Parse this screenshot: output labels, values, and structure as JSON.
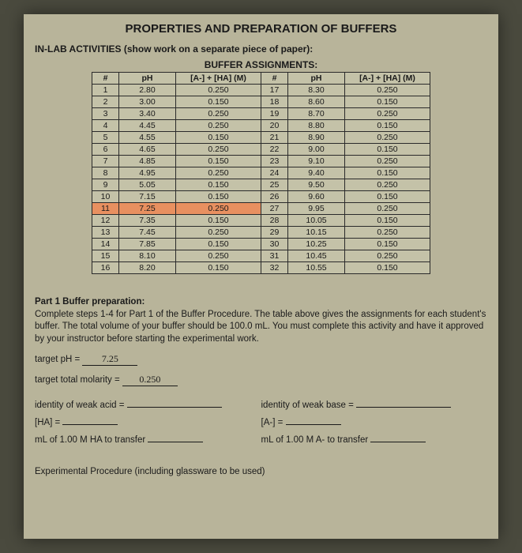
{
  "title": "PROPERTIES AND PREPARATION OF BUFFERS",
  "subhead": "IN-LAB ACTIVITIES (show work on a separate piece of paper):",
  "table_title": "BUFFER ASSIGNMENTS:",
  "headers": {
    "num": "#",
    "ph": "pH",
    "conc": "[A-] + [HA] (M)"
  },
  "highlight_row": 11,
  "left_rows": [
    {
      "n": 1,
      "ph": "2.80",
      "m": "0.250"
    },
    {
      "n": 2,
      "ph": "3.00",
      "m": "0.150"
    },
    {
      "n": 3,
      "ph": "3.40",
      "m": "0.250"
    },
    {
      "n": 4,
      "ph": "4.45",
      "m": "0.250"
    },
    {
      "n": 5,
      "ph": "4.55",
      "m": "0.150"
    },
    {
      "n": 6,
      "ph": "4.65",
      "m": "0.250"
    },
    {
      "n": 7,
      "ph": "4.85",
      "m": "0.150"
    },
    {
      "n": 8,
      "ph": "4.95",
      "m": "0.250"
    },
    {
      "n": 9,
      "ph": "5.05",
      "m": "0.150"
    },
    {
      "n": 10,
      "ph": "7.15",
      "m": "0.150"
    },
    {
      "n": 11,
      "ph": "7.25",
      "m": "0.250"
    },
    {
      "n": 12,
      "ph": "7.35",
      "m": "0.150"
    },
    {
      "n": 13,
      "ph": "7.45",
      "m": "0.250"
    },
    {
      "n": 14,
      "ph": "7.85",
      "m": "0.150"
    },
    {
      "n": 15,
      "ph": "8.10",
      "m": "0.250"
    },
    {
      "n": 16,
      "ph": "8.20",
      "m": "0.150"
    }
  ],
  "right_rows": [
    {
      "n": 17,
      "ph": "8.30",
      "m": "0.250"
    },
    {
      "n": 18,
      "ph": "8.60",
      "m": "0.150"
    },
    {
      "n": 19,
      "ph": "8.70",
      "m": "0.250"
    },
    {
      "n": 20,
      "ph": "8.80",
      "m": "0.150"
    },
    {
      "n": 21,
      "ph": "8.90",
      "m": "0.250"
    },
    {
      "n": 22,
      "ph": "9.00",
      "m": "0.150"
    },
    {
      "n": 23,
      "ph": "9.10",
      "m": "0.250"
    },
    {
      "n": 24,
      "ph": "9.40",
      "m": "0.150"
    },
    {
      "n": 25,
      "ph": "9.50",
      "m": "0.250"
    },
    {
      "n": 26,
      "ph": "9.60",
      "m": "0.150"
    },
    {
      "n": 27,
      "ph": "9.95",
      "m": "0.250"
    },
    {
      "n": 28,
      "ph": "10.05",
      "m": "0.150"
    },
    {
      "n": 29,
      "ph": "10.15",
      "m": "0.250"
    },
    {
      "n": 30,
      "ph": "10.25",
      "m": "0.150"
    },
    {
      "n": 31,
      "ph": "10.45",
      "m": "0.250"
    },
    {
      "n": 32,
      "ph": "10.55",
      "m": "0.150"
    }
  ],
  "part1": {
    "heading": "Part 1 Buffer preparation:",
    "body": "Complete steps 1-4 for Part 1 of the Buffer Procedure. The table above gives the assignments for each student's buffer. The total volume of your buffer should be 100.0 mL. You must complete this activity and have it approved by your instructor before starting the experimental work."
  },
  "fields": {
    "target_ph_label": "target pH =",
    "target_ph_value": "7.25",
    "target_mol_label": "target total molarity =",
    "target_mol_value": "0.250",
    "weak_acid_label": "identity of weak acid =",
    "weak_base_label": "identity of weak base =",
    "ha_label": "[HA] =",
    "a_label": "[A-] =",
    "ml_ha_label": "mL of 1.00 M HA to transfer",
    "ml_a_label": "mL of 1.00 M A-  to transfer"
  },
  "exp_label": "Experimental Procedure (including glassware to be used)",
  "colors": {
    "highlight": "#e89060",
    "page_bg": "#b8b49a",
    "border": "#2a2a2a"
  }
}
